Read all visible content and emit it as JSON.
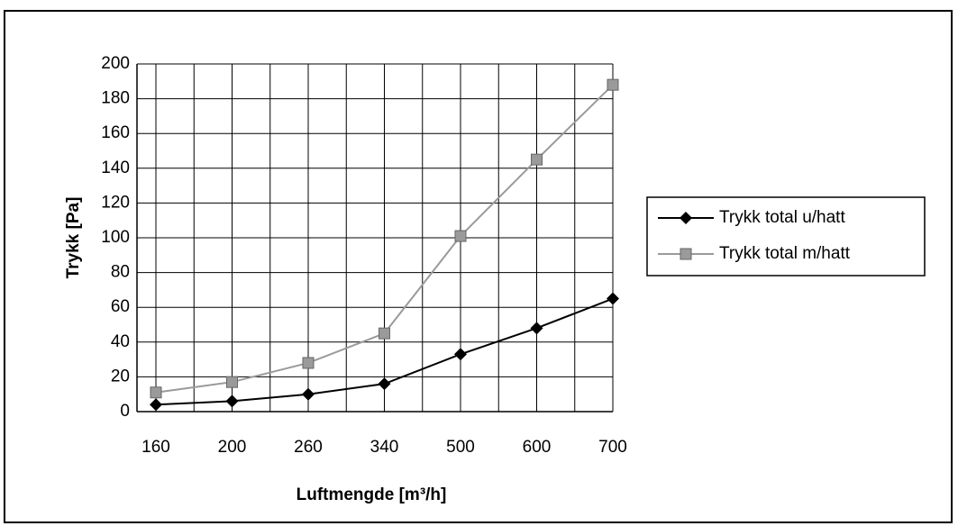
{
  "chart_data": {
    "type": "line",
    "x_label": "Luftmengde [m³/h]",
    "y_label": "Trykk [Pa]",
    "categories": [
      "160",
      "200",
      "260",
      "340",
      "500",
      "600",
      "700"
    ],
    "series": [
      {
        "name": "Trykk total u/hatt",
        "color": "#000000",
        "marker": "diamond",
        "values": [
          4,
          6,
          10,
          16,
          33,
          48,
          65
        ]
      },
      {
        "name": "Trykk total m/hatt",
        "color": "#9a9a9a",
        "marker": "square",
        "values": [
          11,
          17,
          28,
          45,
          101,
          145,
          188
        ]
      }
    ],
    "ylim": [
      0,
      200
    ],
    "yticks": [
      0,
      20,
      40,
      60,
      80,
      100,
      120,
      140,
      160,
      180,
      200
    ],
    "grid": true,
    "legend": "right"
  }
}
